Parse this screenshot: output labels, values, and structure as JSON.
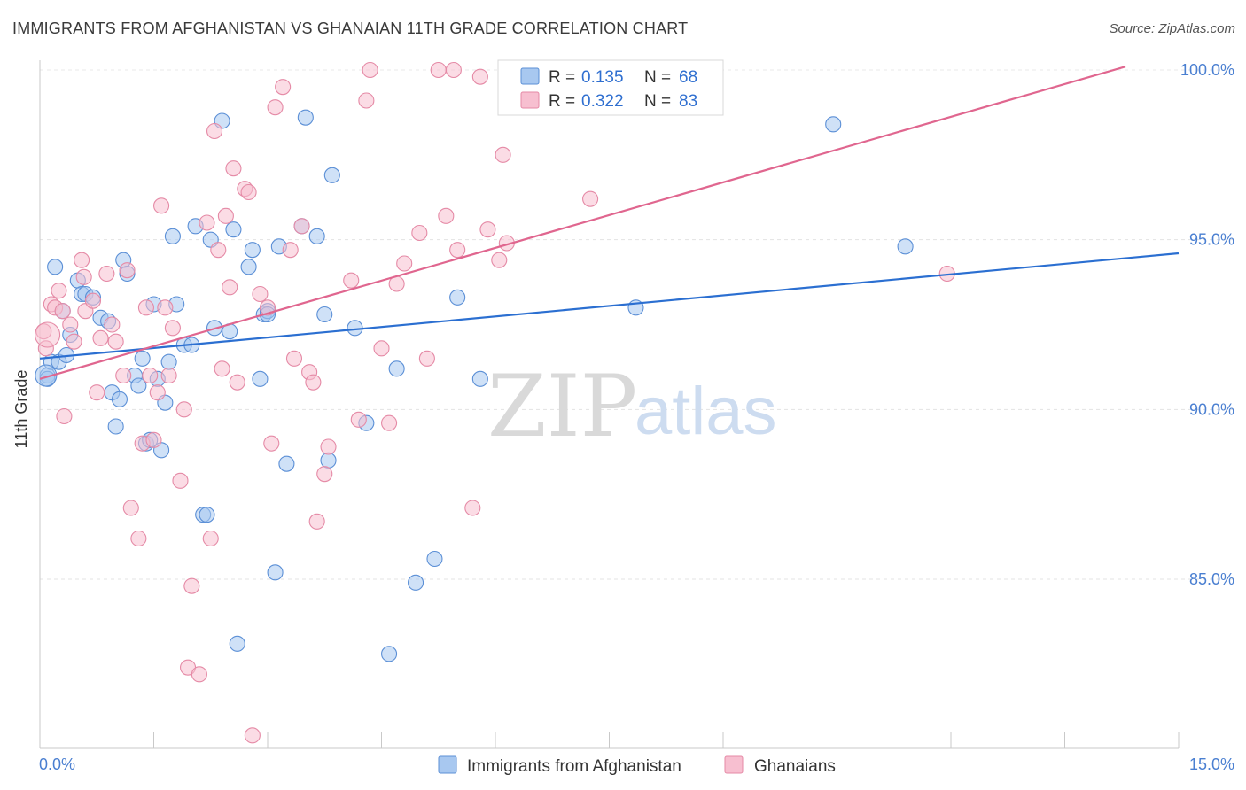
{
  "title": "IMMIGRANTS FROM AFGHANISTAN VS GHANAIAN 11TH GRADE CORRELATION CHART",
  "source": "Source: ZipAtlas.com",
  "watermark": {
    "zip": "ZIP",
    "atlas": "atlas"
  },
  "colors": {
    "blue_fill": "#a8c8f0",
    "blue_stroke": "#5b8fd6",
    "blue_line": "#2b6fd1",
    "pink_fill": "#f7bfd0",
    "pink_stroke": "#e58aa6",
    "pink_line": "#e0668f"
  },
  "legend": {
    "rows": [
      {
        "r_label": "R = ",
        "r_value": "0.135",
        "n_label": "N = ",
        "n_value": "68"
      },
      {
        "r_label": "R = ",
        "r_value": "0.322",
        "n_label": "N = ",
        "n_value": "83"
      }
    ]
  },
  "chart_data": {
    "type": "scatter",
    "title": "IMMIGRANTS FROM AFGHANISTAN VS GHANAIAN 11TH GRADE CORRELATION CHART",
    "xlabel": "",
    "ylabel": "11th Grade",
    "xlim": [
      0,
      15
    ],
    "ylim": [
      80.0,
      100.6
    ],
    "x_tick_labels": [
      "0.0%",
      "15.0%"
    ],
    "y_ticks": [
      85,
      90,
      95,
      100
    ],
    "y_tick_labels": [
      "85.0%",
      "90.0%",
      "95.0%",
      "100.0%"
    ],
    "grid": true,
    "legend_position": "top-center",
    "series": [
      {
        "name": "Immigrants from Afghanistan",
        "color": "#a8c8f0",
        "trend": {
          "x": [
            0,
            15
          ],
          "y": [
            91.5,
            94.6
          ]
        },
        "points": [
          [
            0.1,
            91.0
          ],
          [
            0.1,
            90.9
          ],
          [
            0.15,
            91.4
          ],
          [
            0.2,
            94.2
          ],
          [
            0.25,
            91.4
          ],
          [
            0.3,
            92.9
          ],
          [
            0.35,
            91.6
          ],
          [
            0.4,
            92.2
          ],
          [
            0.5,
            93.8
          ],
          [
            0.55,
            93.4
          ],
          [
            0.6,
            93.4
          ],
          [
            0.7,
            93.3
          ],
          [
            0.8,
            92.7
          ],
          [
            0.9,
            92.6
          ],
          [
            0.95,
            90.5
          ],
          [
            1.0,
            89.5
          ],
          [
            1.05,
            90.3
          ],
          [
            1.1,
            94.4
          ],
          [
            1.15,
            94.0
          ],
          [
            1.25,
            91.0
          ],
          [
            1.3,
            90.7
          ],
          [
            1.35,
            91.5
          ],
          [
            1.4,
            89.0
          ],
          [
            1.45,
            89.1
          ],
          [
            1.5,
            93.1
          ],
          [
            1.55,
            90.9
          ],
          [
            1.6,
            88.8
          ],
          [
            1.65,
            90.2
          ],
          [
            1.7,
            91.4
          ],
          [
            1.75,
            95.1
          ],
          [
            1.8,
            93.1
          ],
          [
            1.9,
            91.9
          ],
          [
            2.05,
            95.4
          ],
          [
            2.15,
            86.9
          ],
          [
            2.2,
            86.9
          ],
          [
            2.25,
            95.0
          ],
          [
            2.3,
            92.4
          ],
          [
            2.4,
            98.5
          ],
          [
            2.5,
            92.3
          ],
          [
            2.55,
            95.3
          ],
          [
            2.6,
            83.1
          ],
          [
            2.75,
            94.2
          ],
          [
            2.8,
            94.7
          ],
          [
            2.9,
            90.9
          ],
          [
            2.95,
            92.8
          ],
          [
            3.0,
            92.9
          ],
          [
            3.1,
            85.2
          ],
          [
            3.15,
            94.8
          ],
          [
            3.25,
            88.4
          ],
          [
            3.45,
            95.4
          ],
          [
            3.5,
            98.6
          ],
          [
            3.65,
            95.1
          ],
          [
            3.75,
            92.8
          ],
          [
            3.8,
            88.5
          ],
          [
            3.85,
            96.9
          ],
          [
            4.15,
            92.4
          ],
          [
            4.3,
            89.6
          ],
          [
            4.6,
            82.8
          ],
          [
            4.7,
            91.2
          ],
          [
            4.95,
            84.9
          ],
          [
            5.2,
            85.6
          ],
          [
            5.5,
            93.3
          ],
          [
            5.8,
            90.9
          ],
          [
            7.85,
            93.0
          ],
          [
            10.45,
            98.4
          ],
          [
            11.4,
            94.8
          ],
          [
            3.0,
            92.8
          ],
          [
            2.0,
            91.9
          ]
        ]
      },
      {
        "name": "Ghanaians",
        "color": "#f7bfd0",
        "trend": {
          "x": [
            0,
            14.3
          ],
          "y": [
            90.9,
            100.1
          ]
        },
        "points": [
          [
            0.05,
            92.3
          ],
          [
            0.08,
            91.8
          ],
          [
            0.15,
            93.1
          ],
          [
            0.2,
            93.0
          ],
          [
            0.25,
            93.5
          ],
          [
            0.3,
            92.9
          ],
          [
            0.32,
            89.8
          ],
          [
            0.4,
            92.5
          ],
          [
            0.45,
            92.0
          ],
          [
            0.55,
            94.4
          ],
          [
            0.58,
            93.9
          ],
          [
            0.6,
            92.9
          ],
          [
            0.7,
            93.2
          ],
          [
            0.75,
            90.5
          ],
          [
            0.8,
            92.1
          ],
          [
            0.88,
            94.0
          ],
          [
            0.95,
            92.5
          ],
          [
            1.0,
            92.0
          ],
          [
            1.1,
            91.0
          ],
          [
            1.15,
            94.1
          ],
          [
            1.2,
            87.1
          ],
          [
            1.3,
            86.2
          ],
          [
            1.35,
            89.0
          ],
          [
            1.4,
            93.0
          ],
          [
            1.45,
            91.0
          ],
          [
            1.5,
            89.1
          ],
          [
            1.55,
            90.5
          ],
          [
            1.6,
            96.0
          ],
          [
            1.65,
            93.0
          ],
          [
            1.7,
            91.0
          ],
          [
            1.75,
            92.4
          ],
          [
            1.85,
            87.9
          ],
          [
            1.9,
            90.0
          ],
          [
            1.95,
            82.4
          ],
          [
            2.0,
            84.8
          ],
          [
            2.1,
            82.2
          ],
          [
            2.2,
            95.5
          ],
          [
            2.25,
            86.2
          ],
          [
            2.3,
            98.2
          ],
          [
            2.35,
            94.7
          ],
          [
            2.4,
            91.2
          ],
          [
            2.45,
            95.7
          ],
          [
            2.5,
            93.6
          ],
          [
            2.55,
            97.1
          ],
          [
            2.6,
            90.8
          ],
          [
            2.7,
            96.5
          ],
          [
            2.75,
            96.4
          ],
          [
            2.8,
            80.4
          ],
          [
            2.9,
            93.4
          ],
          [
            3.0,
            93.0
          ],
          [
            3.05,
            89.0
          ],
          [
            3.1,
            98.9
          ],
          [
            3.2,
            99.5
          ],
          [
            3.3,
            94.7
          ],
          [
            3.35,
            91.5
          ],
          [
            3.45,
            95.4
          ],
          [
            3.55,
            91.1
          ],
          [
            3.6,
            90.8
          ],
          [
            3.65,
            86.7
          ],
          [
            3.75,
            88.1
          ],
          [
            3.8,
            88.9
          ],
          [
            4.1,
            93.8
          ],
          [
            4.2,
            89.7
          ],
          [
            4.3,
            99.1
          ],
          [
            4.35,
            100.0
          ],
          [
            4.5,
            91.8
          ],
          [
            4.6,
            89.6
          ],
          [
            4.7,
            93.7
          ],
          [
            4.8,
            94.3
          ],
          [
            5.0,
            95.2
          ],
          [
            5.1,
            91.5
          ],
          [
            5.25,
            100.0
          ],
          [
            5.35,
            95.7
          ],
          [
            5.45,
            100.0
          ],
          [
            5.5,
            94.7
          ],
          [
            5.7,
            87.1
          ],
          [
            5.8,
            99.8
          ],
          [
            5.9,
            95.3
          ],
          [
            6.05,
            94.4
          ],
          [
            6.1,
            97.5
          ],
          [
            6.15,
            94.9
          ],
          [
            7.25,
            96.2
          ],
          [
            11.95,
            94.0
          ]
        ]
      }
    ]
  },
  "bottom_legend": [
    "Immigrants from Afghanistan",
    "Ghanaians"
  ]
}
